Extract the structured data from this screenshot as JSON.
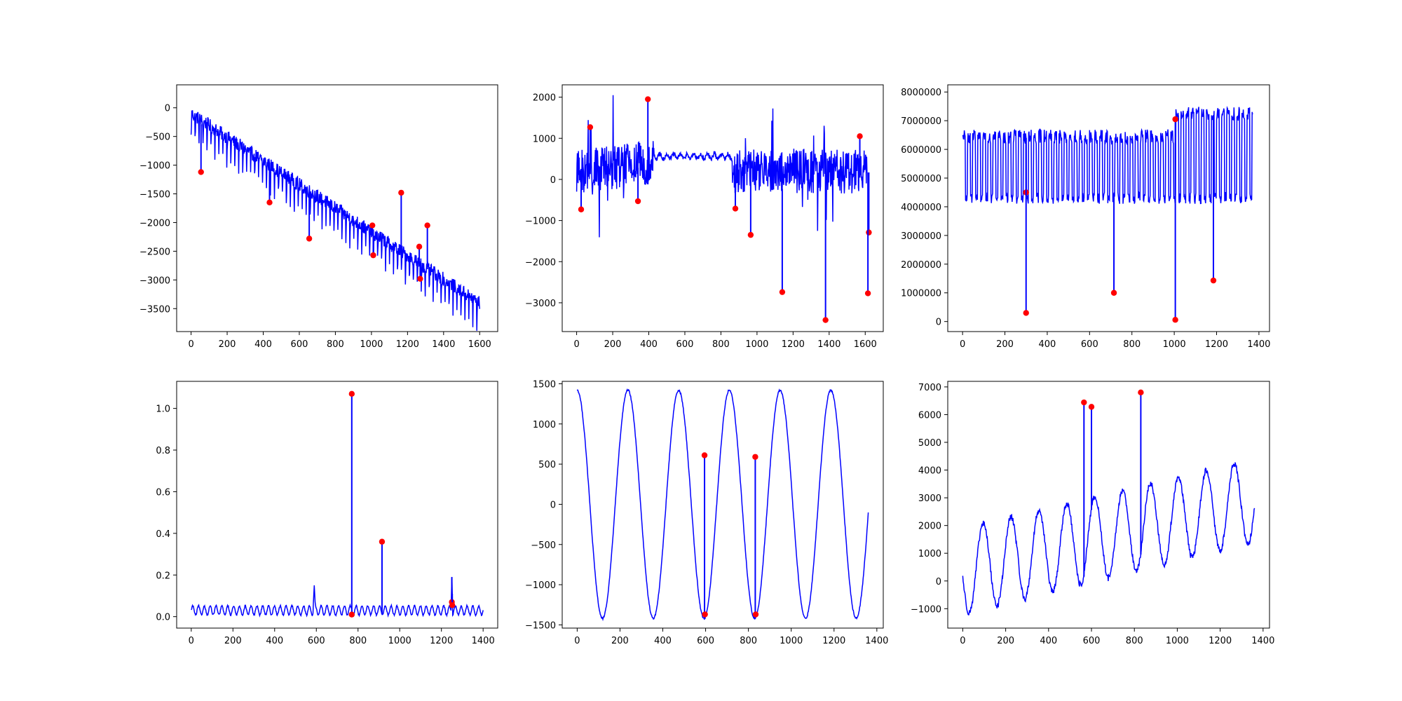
{
  "figure": {
    "series_color": "#0000ff",
    "marker_color": "#ff0000"
  },
  "chart_data": [
    {
      "type": "line",
      "title": "",
      "xlabel": "",
      "ylabel": "",
      "xlim": [
        -80,
        1700
      ],
      "ylim": [
        -3900,
        400
      ],
      "xticks": [
        0,
        200,
        400,
        600,
        800,
        1000,
        1200,
        1400,
        1600
      ],
      "yticks": [
        0,
        -500,
        -1000,
        -1500,
        -2000,
        -2500,
        -3000,
        -3500
      ],
      "ytick_labels": [
        "0",
        "−500",
        "−1000",
        "−1500",
        "−2000",
        "−2500",
        "−3000",
        "−3500"
      ],
      "grid": false,
      "signal": {
        "kind": "trend_sawtooth",
        "n": 1600,
        "start": -100,
        "end": -3400,
        "amp": 420,
        "period": 22,
        "noise": 120
      },
      "anomalies": [
        {
          "x": 55,
          "y": -1120
        },
        {
          "x": 435,
          "y": -1650
        },
        {
          "x": 655,
          "y": -2280
        },
        {
          "x": 1005,
          "y": -2050
        },
        {
          "x": 1010,
          "y": -2570
        },
        {
          "x": 1165,
          "y": -1480
        },
        {
          "x": 1265,
          "y": -2420
        },
        {
          "x": 1270,
          "y": -2980
        },
        {
          "x": 1310,
          "y": -2050
        }
      ]
    },
    {
      "type": "line",
      "title": "",
      "xlabel": "",
      "ylabel": "",
      "xlim": [
        -80,
        1700
      ],
      "ylim": [
        -3700,
        2300
      ],
      "xticks": [
        0,
        200,
        400,
        600,
        800,
        1000,
        1200,
        1400,
        1600
      ],
      "yticks": [
        2000,
        1000,
        0,
        -1000,
        -2000,
        -3000
      ],
      "ytick_labels": [
        "2000",
        "1000",
        "0",
        "−1000",
        "−2000",
        "−3000"
      ],
      "grid": false,
      "signal": {
        "kind": "volatile_regimes",
        "n": 1610,
        "quiet_from": 430,
        "quiet_to": 860,
        "noise_loud": 550,
        "noise_quiet": 60,
        "level_quiet": 560
      },
      "anomalies": [
        {
          "x": 25,
          "y": -730
        },
        {
          "x": 75,
          "y": 1270
        },
        {
          "x": 340,
          "y": -530
        },
        {
          "x": 395,
          "y": 1950
        },
        {
          "x": 880,
          "y": -710
        },
        {
          "x": 965,
          "y": -1350
        },
        {
          "x": 1140,
          "y": -2740
        },
        {
          "x": 1380,
          "y": -3420
        },
        {
          "x": 1570,
          "y": 1050
        },
        {
          "x": 1620,
          "y": -1290
        },
        {
          "x": 1615,
          "y": -2770
        }
      ]
    },
    {
      "type": "line",
      "title": "",
      "xlabel": "",
      "ylabel": "",
      "xlim": [
        -70,
        1450
      ],
      "ylim": [
        -350000,
        8250000
      ],
      "xticks": [
        0,
        200,
        400,
        600,
        800,
        1000,
        1200,
        1400
      ],
      "yticks": [
        0,
        1000000,
        2000000,
        3000000,
        4000000,
        5000000,
        6000000,
        7000000,
        8000000
      ],
      "ytick_labels": [
        "0",
        "1000000",
        "2000000",
        "3000000",
        "4000000",
        "5000000",
        "6000000",
        "7000000",
        "8000000"
      ],
      "grid": false,
      "signal": {
        "kind": "daily_cycle",
        "n": 1370,
        "period": 24,
        "low": 4100000,
        "high": 6700000,
        "high_late": 7500000,
        "late_from": 1000
      },
      "anomalies": [
        {
          "x": 300,
          "y": 4500000
        },
        {
          "x": 300,
          "y": 300000
        },
        {
          "x": 715,
          "y": 1000000
        },
        {
          "x": 1005,
          "y": 7050000
        },
        {
          "x": 1005,
          "y": 60000
        },
        {
          "x": 1185,
          "y": 1430000
        }
      ]
    },
    {
      "type": "line",
      "title": "",
      "xlabel": "",
      "ylabel": "",
      "xlim": [
        -70,
        1470
      ],
      "ylim": [
        -0.055,
        1.13
      ],
      "xticks": [
        0,
        200,
        400,
        600,
        800,
        1000,
        1200,
        1400
      ],
      "yticks": [
        0.0,
        0.2,
        0.4,
        0.6,
        0.8,
        1.0
      ],
      "ytick_labels": [
        "0.0",
        "0.2",
        "0.4",
        "0.6",
        "0.8",
        "1.0"
      ],
      "grid": false,
      "signal": {
        "kind": "small_ripple",
        "n": 1400,
        "base": 0.03,
        "amp": 0.022,
        "period": 28,
        "bump_x": 590,
        "bump_y": 0.12,
        "bump2_x": 1250,
        "bump2_y": 0.16
      },
      "anomalies": [
        {
          "x": 770,
          "y": 1.07
        },
        {
          "x": 770,
          "y": 0.01
        },
        {
          "x": 915,
          "y": 0.36
        },
        {
          "x": 1250,
          "y": 0.07
        },
        {
          "x": 1252,
          "y": 0.055
        }
      ]
    },
    {
      "type": "line",
      "title": "",
      "xlabel": "",
      "ylabel": "",
      "xlim": [
        -70,
        1430
      ],
      "ylim": [
        -1540,
        1530
      ],
      "xticks": [
        0,
        200,
        400,
        600,
        800,
        1000,
        1200,
        1400
      ],
      "yticks": [
        1500,
        1000,
        500,
        0,
        -500,
        -1000,
        -1500
      ],
      "ytick_labels": [
        "1500",
        "1000",
        "500",
        "0",
        "−500",
        "−1000",
        "−1500"
      ],
      "grid": false,
      "signal": {
        "kind": "cosine",
        "n": 1360,
        "amp": 1420,
        "period": 237,
        "noise": 12
      },
      "anomalies": [
        {
          "x": 595,
          "y": 610
        },
        {
          "x": 597,
          "y": -1370
        },
        {
          "x": 832,
          "y": 590
        },
        {
          "x": 834,
          "y": -1370
        }
      ]
    },
    {
      "type": "line",
      "title": "",
      "xlabel": "",
      "ylabel": "",
      "xlim": [
        -70,
        1430
      ],
      "ylim": [
        -1700,
        7200
      ],
      "xticks": [
        0,
        200,
        400,
        600,
        800,
        1000,
        1200,
        1400
      ],
      "yticks": [
        -1000,
        0,
        1000,
        2000,
        3000,
        4000,
        5000,
        6000,
        7000
      ],
      "ytick_labels": [
        "−1000",
        "0",
        "1000",
        "2000",
        "3000",
        "4000",
        "5000",
        "6000",
        "7000"
      ],
      "grid": false,
      "signal": {
        "kind": "growing_wave",
        "n": 1360,
        "period": 130,
        "start_low": -1200,
        "start_high": 1900,
        "end_low": 1400,
        "end_high": 4400,
        "noise": 110
      },
      "anomalies": [
        {
          "x": 565,
          "y": 6440
        },
        {
          "x": 600,
          "y": 6280
        },
        {
          "x": 830,
          "y": 6800
        }
      ]
    }
  ]
}
